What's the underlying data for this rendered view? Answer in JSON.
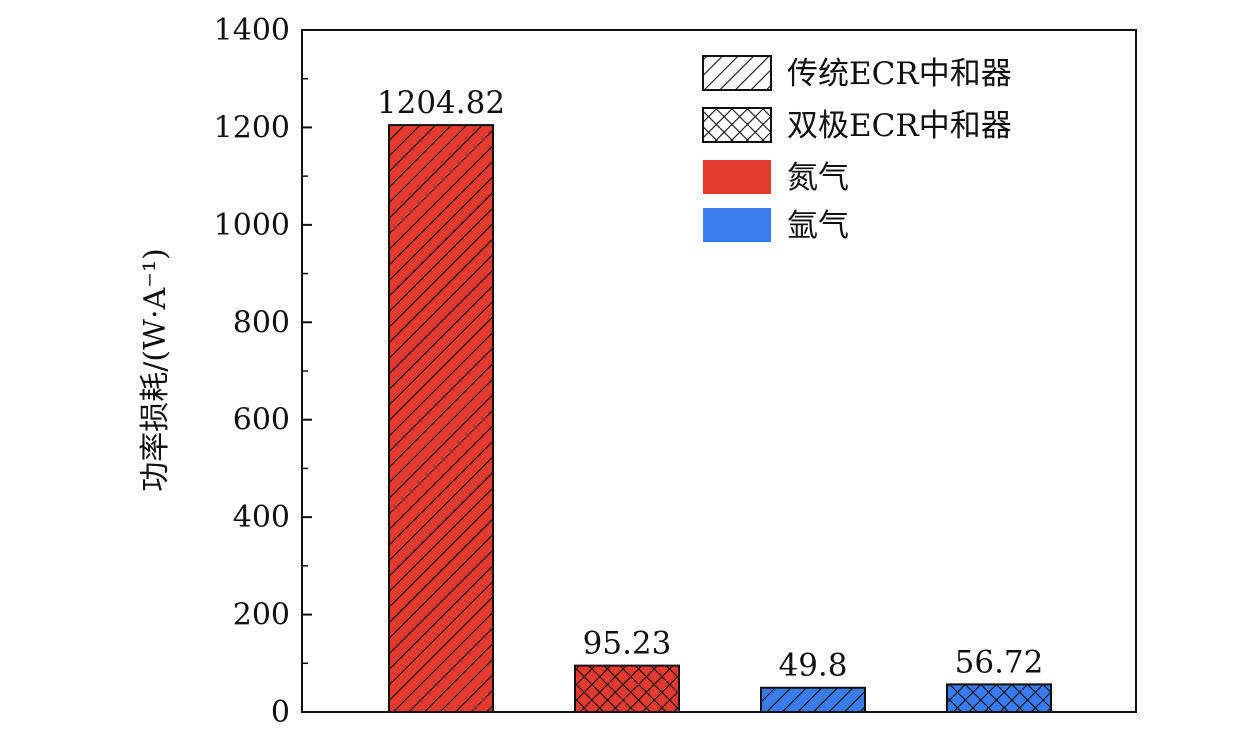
{
  "chart_data": {
    "type": "bar",
    "title": "",
    "xlabel": "",
    "ylabel": "功率损耗/(W·A⁻¹)",
    "ylim": [
      0,
      1400
    ],
    "yticks": [
      0,
      200,
      400,
      600,
      800,
      1000,
      1200,
      1400
    ],
    "grid": false,
    "legend_position": "top-right",
    "bars": [
      {
        "value": 1204.82,
        "label": "1204.82",
        "gas": "nitrogen",
        "neutralizer": "traditional"
      },
      {
        "value": 95.23,
        "label": "95.23",
        "gas": "nitrogen",
        "neutralizer": "bipolar"
      },
      {
        "value": 49.8,
        "label": "49.8",
        "gas": "argon",
        "neutralizer": "traditional"
      },
      {
        "value": 56.72,
        "label": "56.72",
        "gas": "argon",
        "neutralizer": "bipolar"
      }
    ],
    "colors": {
      "nitrogen": "#e53a2f",
      "argon": "#3a7bf0"
    },
    "patterns": {
      "traditional": "diagonal-hatch",
      "bipolar": "cross-hatch"
    },
    "legend": [
      {
        "label": "传统ECR中和器",
        "swatch": "diagonal-hatch"
      },
      {
        "label": "双极ECR中和器",
        "swatch": "cross-hatch"
      },
      {
        "label": "氮气",
        "swatch": "nitrogen"
      },
      {
        "label": "氩气",
        "swatch": "argon"
      }
    ]
  }
}
